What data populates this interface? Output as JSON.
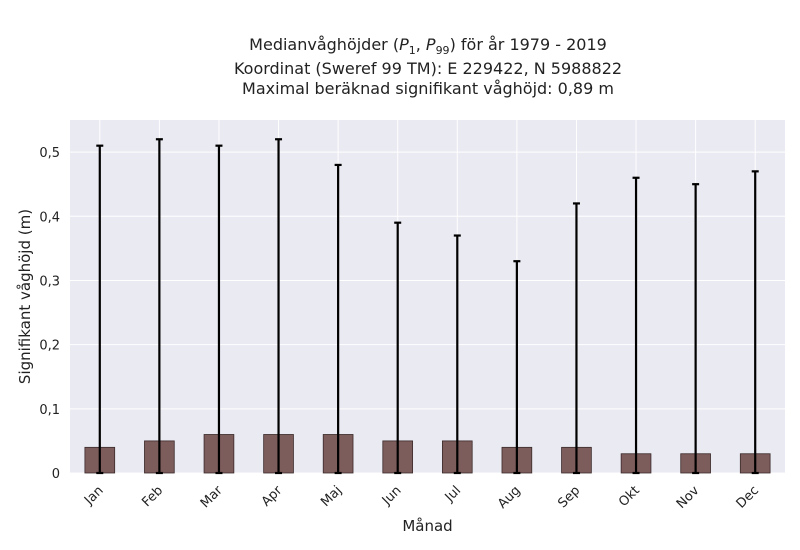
{
  "chart_data": {
    "type": "bar",
    "title_lines": [
      "Medianvåghöjder (P1, P99) för år 1979 - 2019",
      "Koordinat (Sweref 99 TM): E 229422, N 5988822",
      "Maximal beräknad signifikant våghöjd: 0,89 m"
    ],
    "xlabel": "Månad",
    "ylabel": "Signifikant våghöjd (m)",
    "categories": [
      "Jan",
      "Feb",
      "Mar",
      "Apr",
      "Maj",
      "Jun",
      "Jul",
      "Aug",
      "Sep",
      "Okt",
      "Nov",
      "Dec"
    ],
    "series": [
      {
        "values": [
          0.04,
          0.05,
          0.06,
          0.06,
          0.06,
          0.05,
          0.05,
          0.04,
          0.04,
          0.03,
          0.03,
          0.03
        ],
        "error_low": [
          0.0,
          0.0,
          0.0,
          0.0,
          0.0,
          0.0,
          0.0,
          0.0,
          0.0,
          0.0,
          0.0,
          0.0
        ],
        "error_high": [
          0.51,
          0.52,
          0.51,
          0.52,
          0.48,
          0.39,
          0.37,
          0.33,
          0.42,
          0.46,
          0.45,
          0.47
        ]
      }
    ],
    "yticks": [
      0,
      0.1,
      0.2,
      0.3,
      0.4,
      0.5
    ],
    "ytick_labels": [
      "0",
      "0,1",
      "0,2",
      "0,3",
      "0,4",
      "0,5"
    ],
    "ylim": [
      0,
      0.55
    ],
    "grid": true,
    "colors": {
      "bar": "#7d5c5c",
      "bar_edge": "#3a2a2a",
      "error": "#000000",
      "plot_bg": "#eaeaf2",
      "grid": "#ffffff"
    }
  }
}
